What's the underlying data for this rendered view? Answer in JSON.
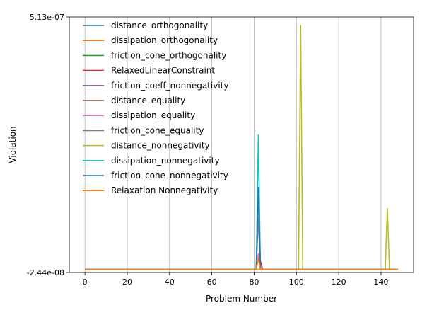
{
  "chart_data": {
    "type": "line",
    "xlabel": "Problem Number",
    "ylabel": "Violation",
    "xlim": [
      -7.4,
      155.4
    ],
    "ylim": [
      -2.44e-08,
      5.13e-07
    ],
    "xticks": [
      0,
      20,
      40,
      60,
      80,
      100,
      120,
      140
    ],
    "xtick_labels": [
      "0",
      "20",
      "40",
      "60",
      "80",
      "100",
      "120",
      "140"
    ],
    "yticks": [
      -2.44e-08,
      5.13e-07
    ],
    "ytick_labels": [
      "-2.44e-08",
      "5.13e-07"
    ],
    "grid": "x",
    "legend_position": "upper-left",
    "baseline": -1.8e-08,
    "series": [
      {
        "name": "distance_orthogonality",
        "color": "#1f77b4",
        "baseline": -1.8e-08,
        "x": [
          81,
          82,
          83
        ],
        "y": [
          -1.8e-08,
          1.55e-07,
          -1.8e-08
        ]
      },
      {
        "name": "dissipation_orthogonality",
        "color": "#ff7f0e",
        "baseline": -1.8e-08,
        "x": [
          81,
          82,
          83
        ],
        "y": [
          -1.8e-08,
          1e-08,
          -1.8e-08
        ]
      },
      {
        "name": "friction_cone_orthogonality",
        "color": "#2ca02c",
        "baseline": -1.8e-08,
        "x": [],
        "y": []
      },
      {
        "name": "RelaxedLinearConstraint",
        "color": "#d62728",
        "baseline": -1.8e-08,
        "x": [
          81,
          82,
          83,
          84
        ],
        "y": [
          -1.8e-08,
          8e-09,
          0.0,
          -1.8e-08
        ]
      },
      {
        "name": "friction_coeff_nonnegativity",
        "color": "#9467bd",
        "baseline": -1.8e-08,
        "x": [],
        "y": []
      },
      {
        "name": "distance_equality",
        "color": "#8c564b",
        "baseline": -1.8e-08,
        "x": [],
        "y": []
      },
      {
        "name": "dissipation_equality",
        "color": "#e377c2",
        "baseline": -1.8e-08,
        "x": [
          81,
          82,
          83
        ],
        "y": [
          -1.8e-08,
          1.5e-08,
          -1.8e-08
        ]
      },
      {
        "name": "friction_cone_equality",
        "color": "#7f7f7f",
        "baseline": -1.8e-08,
        "x": [
          81,
          82,
          83
        ],
        "y": [
          -1.8e-08,
          9e-08,
          -1.8e-08
        ]
      },
      {
        "name": "distance_nonnegativity",
        "color": "#bcbd22",
        "baseline": -1.8e-08,
        "x": [
          101,
          102,
          103,
          142,
          143,
          144
        ],
        "y": [
          -1.8e-08,
          4.95e-07,
          -1.8e-08,
          -1.8e-08,
          1.1e-07,
          -1.8e-08
        ]
      },
      {
        "name": "dissipation_nonnegativity",
        "color": "#17becf",
        "baseline": -1.8e-08,
        "x": [
          81,
          82,
          83
        ],
        "y": [
          -1.8e-08,
          2.65e-07,
          -1.8e-08
        ]
      },
      {
        "name": "friction_cone_nonnegativity",
        "color": "#1f77b4",
        "baseline": -1.8e-08,
        "x": [
          81,
          82,
          83
        ],
        "y": [
          -1.8e-08,
          1.55e-07,
          -1.8e-08
        ]
      },
      {
        "name": "Relaxation Nonnegativity",
        "color": "#ff7f0e",
        "baseline": -1.8e-08,
        "x": [
          81,
          82,
          83
        ],
        "y": [
          -1.8e-08,
          5e-09,
          -1.8e-08
        ]
      }
    ],
    "x_range": [
      0,
      148
    ]
  }
}
